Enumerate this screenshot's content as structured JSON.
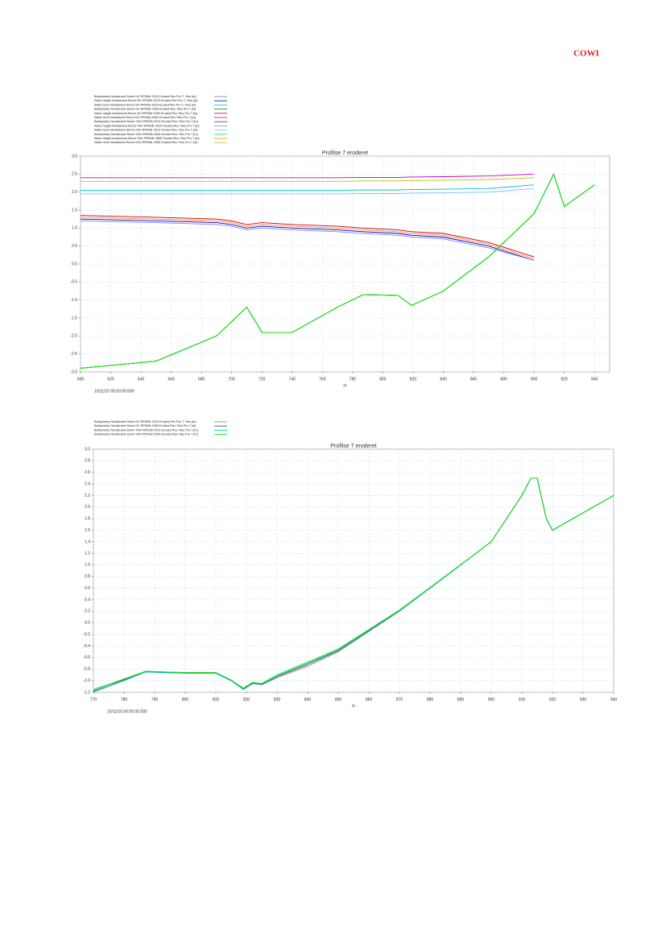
{
  "header": {
    "logo": "COWI"
  },
  "chart_data": [
    {
      "type": "line",
      "title": "Profilse 7 eroderet",
      "xlabel": "m",
      "date": "10/11/10 00:00:00:000",
      "x": [
        600,
        650,
        690,
        700,
        710,
        720,
        740,
        770,
        787,
        810,
        819,
        840,
        870,
        900,
        913,
        920,
        940
      ],
      "xlim": [
        600,
        950
      ],
      "xticks": [
        600,
        620,
        640,
        660,
        680,
        700,
        720,
        740,
        760,
        780,
        800,
        820,
        840,
        860,
        880,
        900,
        920,
        940
      ],
      "ylim": [
        -3.0,
        3.0
      ],
      "yticks": [
        {
          "value": -3.0,
          "label": "-3.0"
        },
        {
          "value": -2.5,
          "label": "-2.5"
        },
        {
          "value": -2.0,
          "label": "-2.0"
        },
        {
          "value": -1.5,
          "label": "-1.5"
        },
        {
          "value": -1.0,
          "label": "-1.0"
        },
        {
          "value": -0.5,
          "label": "-0.5"
        },
        {
          "value": 0.0,
          "label": "0.0"
        },
        {
          "value": 0.5,
          "label": "0.5"
        },
        {
          "value": 1.0,
          "label": "1.0"
        },
        {
          "value": 1.5,
          "label": "1.5"
        },
        {
          "value": 2.0,
          "label": "2.0"
        },
        {
          "value": 2.5,
          "label": "2.5"
        },
        {
          "value": 3.0,
          "label": "3.0"
        }
      ],
      "grid": true,
      "series": [
        {
          "name": "Bathymetry Nordstrand Storm NV RP50år 2015 Eroded Rev Pro 7. Res   [m]",
          "color": "#808080",
          "values": [
            -2.9,
            -2.7,
            -2.0,
            -1.6,
            -1.2,
            -1.9,
            -1.9,
            -1.2,
            -0.85,
            -0.87,
            -1.15,
            -0.75,
            0.2,
            1.4,
            2.5,
            1.6,
            2.2
          ]
        },
        {
          "name": "Wave height Nordstrand Storm NV RP50år 2015 Eroded Rev Pro 7. Res   [m]",
          "color": "#0000c0",
          "values": [
            1.25,
            1.2,
            1.15,
            1.1,
            1.0,
            1.05,
            1.0,
            0.95,
            0.9,
            0.85,
            0.8,
            0.75,
            0.5,
            0.1,
            null,
            null,
            null
          ]
        },
        {
          "name": "Water level Nordstrand Storm NV RP50år 2015 Eroded Rev Pro 7. Res   [m]",
          "color": "#00c0c0",
          "values": [
            2.05,
            2.05,
            2.05,
            2.05,
            2.05,
            2.05,
            2.05,
            2.05,
            2.06,
            2.06,
            2.07,
            2.08,
            2.1,
            2.2,
            null,
            null,
            null
          ]
        },
        {
          "name": "Bathymetry Nordstrand Storm NV RP50år 2065 Eroded Rev. Res Pro 7   [m]",
          "color": "#008000",
          "values": [
            -2.9,
            -2.7,
            -2.0,
            -1.6,
            -1.2,
            -1.9,
            -1.9,
            -1.2,
            -0.85,
            -0.87,
            -1.15,
            -0.75,
            0.2,
            1.4,
            2.5,
            1.6,
            2.2
          ]
        },
        {
          "name": "Wave height Nordstrand Storm NV RP50år 2065 Eroded Rev. Res Pro 7   [m]",
          "color": "#c00000",
          "values": [
            1.35,
            1.3,
            1.25,
            1.2,
            1.1,
            1.15,
            1.1,
            1.05,
            1.0,
            0.95,
            0.9,
            0.85,
            0.6,
            0.2,
            null,
            null,
            null
          ]
        },
        {
          "name": "Water level Nordstrand Storm NV RP50år 2065 Eroded Rev. Res Pro 7   [m]",
          "color": "#c000c0",
          "values": [
            2.4,
            2.4,
            2.4,
            2.4,
            2.4,
            2.4,
            2.4,
            2.4,
            2.41,
            2.41,
            2.42,
            2.43,
            2.45,
            2.5,
            null,
            null,
            null
          ]
        },
        {
          "name": "Bathymetry Nordstrand Storm VNV RP50år 2015 Eroded Rev. Res Pro 7 [m]",
          "color": "#404040",
          "values": [
            -2.9,
            -2.7,
            -2.0,
            -1.6,
            -1.2,
            -1.9,
            -1.9,
            -1.2,
            -0.85,
            -0.87,
            -1.15,
            -0.75,
            0.2,
            1.4,
            2.5,
            1.6,
            2.2
          ]
        },
        {
          "name": "Wave height Nordstrand Storm VNV RP50år 2015 Eroded Rev. Res Pro 7 [m]",
          "color": "#8080ff",
          "values": [
            1.2,
            1.15,
            1.1,
            1.05,
            0.95,
            1.0,
            0.95,
            0.9,
            0.85,
            0.8,
            0.75,
            0.7,
            0.45,
            0.1,
            null,
            null,
            null
          ]
        },
        {
          "name": "Water level Nordstrand Storm VNV RP50år 2015 Eroded Rev. Res Pro 7 [m]",
          "color": "#80c0ff",
          "values": [
            1.95,
            1.95,
            1.95,
            1.95,
            1.95,
            1.95,
            1.95,
            1.95,
            1.96,
            1.96,
            1.97,
            1.98,
            2.0,
            2.1,
            null,
            null,
            null
          ]
        },
        {
          "name": "Bathymetry Nordstrand Storm VNV RP50år 2065 Eroded Rev. Res Pro 7 [m]",
          "color": "#00ff00",
          "values": [
            -2.9,
            -2.7,
            -2.0,
            -1.6,
            -1.2,
            -1.9,
            -1.9,
            -1.2,
            -0.85,
            -0.87,
            -1.15,
            -0.75,
            0.2,
            1.4,
            2.5,
            1.6,
            2.2
          ]
        },
        {
          "name": "Wave height Nordstrand Storm VNV RP50år 2065 Eroded Rev. Res Pro 7 [m]",
          "color": "#ff8040",
          "values": [
            1.3,
            1.25,
            1.2,
            1.15,
            1.05,
            1.1,
            1.05,
            1.0,
            0.95,
            0.9,
            0.85,
            0.8,
            0.55,
            0.15,
            null,
            null,
            null
          ]
        },
        {
          "name": "Water level Nordstrand Storm VNV RP50år 2065 Eroded Rev. Res Pro 7 [m]",
          "color": "#c0c000",
          "values": [
            2.3,
            2.3,
            2.3,
            2.3,
            2.3,
            2.3,
            2.3,
            2.3,
            2.31,
            2.31,
            2.32,
            2.33,
            2.35,
            2.4,
            null,
            null,
            null
          ]
        }
      ]
    },
    {
      "type": "line",
      "title": "Profilse 7 eroderet",
      "xlabel": "m",
      "date": "10/11/10 00:00:00:000",
      "x": [
        770,
        780,
        787,
        800,
        810,
        815,
        819,
        822,
        825,
        830,
        840,
        850,
        870,
        880,
        900,
        910,
        913,
        915,
        918,
        920,
        940
      ],
      "xlim": [
        770,
        940
      ],
      "xticks": [
        770,
        780,
        790,
        800,
        810,
        820,
        830,
        840,
        850,
        860,
        870,
        880,
        890,
        900,
        910,
        920,
        930,
        940
      ],
      "ylim": [
        -1.2,
        3.0
      ],
      "yticks": [
        {
          "value": -1.2,
          "label": "-1.2"
        },
        {
          "value": -1.0,
          "label": "-1.0"
        },
        {
          "value": -0.8,
          "label": "-0.8"
        },
        {
          "value": -0.6,
          "label": "-0.6"
        },
        {
          "value": -0.4,
          "label": "-0.4"
        },
        {
          "value": -0.2,
          "label": "-0.2"
        },
        {
          "value": 0.0,
          "label": "0.0"
        },
        {
          "value": 0.2,
          "label": "0.2"
        },
        {
          "value": 0.4,
          "label": "0.4"
        },
        {
          "value": 0.6,
          "label": "0.6"
        },
        {
          "value": 0.8,
          "label": "0.8"
        },
        {
          "value": 1.0,
          "label": "1.0"
        },
        {
          "value": 1.2,
          "label": "1.2"
        },
        {
          "value": 1.4,
          "label": "1.4"
        },
        {
          "value": 1.6,
          "label": "1.6"
        },
        {
          "value": 1.8,
          "label": "1.8"
        },
        {
          "value": 2.0,
          "label": "2.0"
        },
        {
          "value": 2.2,
          "label": "2.2"
        },
        {
          "value": 2.4,
          "label": "2.4"
        },
        {
          "value": 2.6,
          "label": "2.6"
        },
        {
          "value": 2.8,
          "label": "2.8"
        },
        {
          "value": 3.0,
          "label": "3.0"
        }
      ],
      "grid": true,
      "series": [
        {
          "name": "Bathymetry Nordstrand Storm NV RP50år 2015 Eroded Rev Pro 7. Res   [m]",
          "color": "#808080",
          "values": [
            -1.2,
            -1.0,
            -0.85,
            -0.87,
            -0.87,
            -1.0,
            -1.15,
            -1.05,
            -1.07,
            -0.95,
            -0.75,
            -0.5,
            0.2,
            0.6,
            1.4,
            2.2,
            2.5,
            2.5,
            1.8,
            1.6,
            2.2
          ]
        },
        {
          "name": "Bathymetry Nordstrand Storm NV RP50år 2065 Eroded Rev. Res Pro 7   [m]",
          "color": "#404040",
          "values": [
            -1.18,
            -0.98,
            -0.84,
            -0.86,
            -0.86,
            -0.99,
            -1.14,
            -1.04,
            -1.06,
            -0.93,
            -0.72,
            -0.48,
            0.21,
            0.6,
            1.4,
            2.2,
            2.5,
            2.5,
            1.8,
            1.6,
            2.2
          ]
        },
        {
          "name": "Bathymetry Nordstrand Storm VNV RP50år 2015 Eroded Rev. Res Pro 7 [m]",
          "color": "#00c0c0",
          "values": [
            -1.17,
            -0.99,
            -0.85,
            -0.87,
            -0.87,
            -1.0,
            -1.15,
            -1.05,
            -1.06,
            -0.92,
            -0.7,
            -0.47,
            0.21,
            0.6,
            1.4,
            2.2,
            2.5,
            2.5,
            1.8,
            1.6,
            2.2
          ]
        },
        {
          "name": "Bathymetry Nordstrand Storm VNV RP50år 2065 Eroded Rev. Res Pro 7 [m]",
          "color": "#00e000",
          "values": [
            -1.15,
            -0.97,
            -0.84,
            -0.86,
            -0.86,
            -0.99,
            -1.13,
            -1.03,
            -1.05,
            -0.9,
            -0.68,
            -0.45,
            0.22,
            0.61,
            1.4,
            2.2,
            2.5,
            2.5,
            1.8,
            1.6,
            2.2
          ]
        }
      ]
    }
  ]
}
